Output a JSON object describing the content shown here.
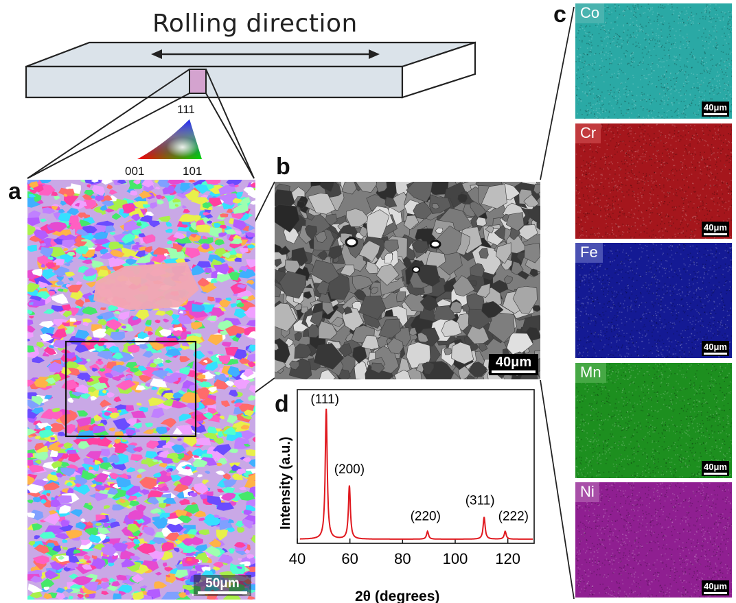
{
  "figure": {
    "title": "Rolling direction",
    "panel_letters": {
      "a": "a",
      "b": "b",
      "c": "c",
      "d": "d"
    },
    "ipf_legend": {
      "top": "111",
      "bottom_left": "001",
      "bottom_right": "101"
    },
    "panel_a": {
      "scale_bar": "50μm"
    },
    "panel_b": {
      "scale_bar": "40μm"
    },
    "panel_c": {
      "elements": [
        {
          "symbol": "Co",
          "scale_bar": "40μm",
          "color": "#2aa9a5",
          "tag_color": "#49b3af"
        },
        {
          "symbol": "Cr",
          "scale_bar": "40μm",
          "color": "#a5161c",
          "tag_color": "#c23a3e"
        },
        {
          "symbol": "Fe",
          "scale_bar": "40μm",
          "color": "#141a94",
          "tag_color": "#4a51b3"
        },
        {
          "symbol": "Mn",
          "scale_bar": "40μm",
          "color": "#1d8f1f",
          "tag_color": "#46a845"
        },
        {
          "symbol": "Ni",
          "scale_bar": "40μm",
          "color": "#8f1f91",
          "tag_color": "#a84fa8"
        }
      ]
    }
  },
  "chart_data": {
    "type": "line",
    "xlabel": "2θ (degrees)",
    "ylabel": "Intensity (a.u.)",
    "xlim": [
      40,
      130
    ],
    "xticks": [
      40,
      60,
      80,
      100,
      120
    ],
    "grid": false,
    "series_color": "#e0191f",
    "peaks": [
      {
        "label": "(111)",
        "x": 51,
        "height": 1.0
      },
      {
        "label": "(200)",
        "x": 59.8,
        "height": 0.41
      },
      {
        "label": "(220)",
        "x": 89.5,
        "height": 0.06
      },
      {
        "label": "(311)",
        "x": 111,
        "height": 0.17
      },
      {
        "label": "(222)",
        "x": 119,
        "height": 0.06
      }
    ]
  }
}
